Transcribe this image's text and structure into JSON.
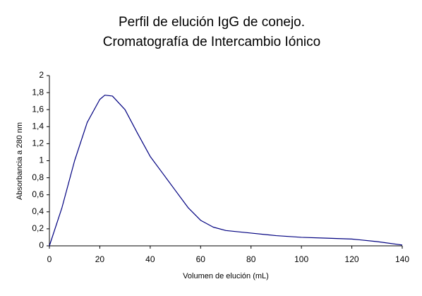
{
  "chart_data": {
    "type": "line",
    "title": [
      "Perfil de elución IgG de conejo.",
      "Cromatografía de Intercambio Iónico"
    ],
    "x_label": "Volumen de elución (mL)",
    "y_label": "Absorbancia a 280 nm",
    "x": [
      0,
      5,
      10,
      15,
      20,
      22,
      25,
      30,
      35,
      40,
      45,
      50,
      55,
      60,
      65,
      70,
      80,
      90,
      100,
      110,
      120,
      130,
      140
    ],
    "series": [
      {
        "color": "#000080",
        "values": [
          0,
          0.45,
          1.0,
          1.45,
          1.72,
          1.77,
          1.76,
          1.6,
          1.32,
          1.05,
          0.85,
          0.65,
          0.45,
          0.3,
          0.22,
          0.18,
          0.15,
          0.12,
          0.1,
          0.09,
          0.08,
          0.05,
          0.01
        ]
      }
    ],
    "xlim": [
      0,
      140
    ],
    "xticks": [
      0,
      20,
      40,
      60,
      80,
      100,
      120,
      140
    ],
    "ylim": [
      0,
      2
    ],
    "yticks": [
      0,
      {
        "value": 0.2,
        "label": "0,2"
      },
      {
        "value": 0.4,
        "label": "0,4"
      },
      {
        "value": 0.6,
        "label": "0,6"
      },
      {
        "value": 0.8,
        "label": "0,8"
      },
      1,
      {
        "value": 1.2,
        "label": "1,2"
      },
      {
        "value": 1.4,
        "label": "1,4"
      },
      {
        "value": 1.6,
        "label": "1,6"
      },
      {
        "value": 1.8,
        "label": "1,8"
      },
      2
    ]
  }
}
